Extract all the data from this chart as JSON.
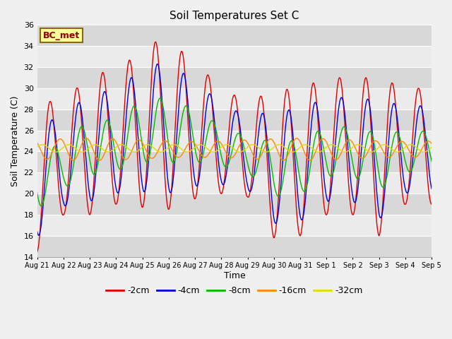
{
  "title": "Soil Temperatures Set C",
  "xlabel": "Time",
  "ylabel": "Soil Temperature (C)",
  "ylim": [
    14,
    36
  ],
  "yticks": [
    14,
    16,
    18,
    20,
    22,
    24,
    26,
    28,
    30,
    32,
    34,
    36
  ],
  "num_points": 1440,
  "series_order": [
    "-2cm",
    "-4cm",
    "-8cm",
    "-16cm",
    "-32cm"
  ],
  "series": {
    "-2cm": {
      "color": "#dd0000",
      "label": "-2cm"
    },
    "-4cm": {
      "color": "#0000dd",
      "label": "-4cm"
    },
    "-8cm": {
      "color": "#00bb00",
      "label": "-8cm"
    },
    "-16cm": {
      "color": "#ff8800",
      "label": "-16cm"
    },
    "-32cm": {
      "color": "#dddd00",
      "label": "-32cm"
    }
  },
  "annotation_text": "BC_met",
  "bg_color": "#f0f0f0",
  "plot_bg_color": "#e8e8e8",
  "band_colors": [
    "#d8d8d8",
    "#ebebeb"
  ]
}
